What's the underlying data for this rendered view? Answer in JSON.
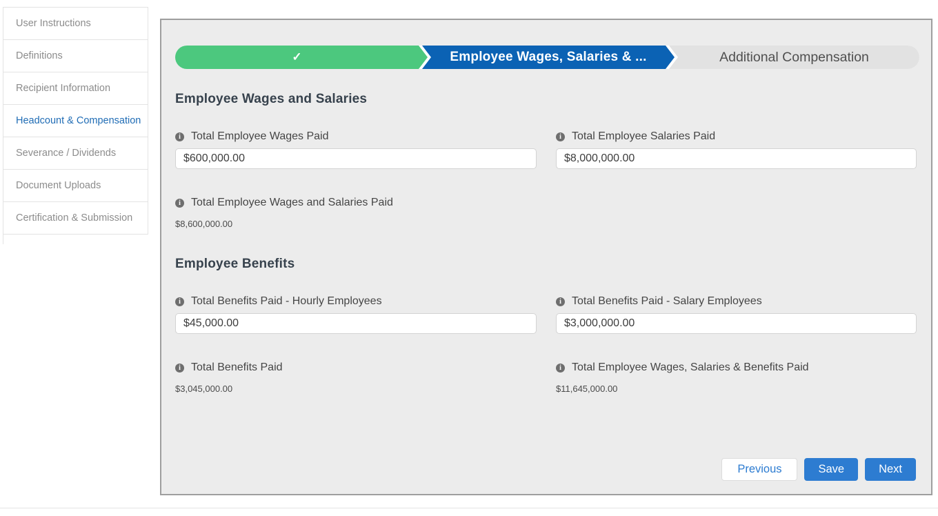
{
  "sidebar": {
    "items": [
      {
        "label": "User Instructions",
        "active": false
      },
      {
        "label": "Definitions",
        "active": false
      },
      {
        "label": "Recipient Information",
        "active": false
      },
      {
        "label": "Headcount & Compensation",
        "active": true
      },
      {
        "label": "Severance / Dividends",
        "active": false
      },
      {
        "label": "Document Uploads",
        "active": false
      },
      {
        "label": "Certification & Submission",
        "active": false
      }
    ]
  },
  "stepper": {
    "steps": [
      {
        "label": "",
        "state": "complete",
        "icon": "check"
      },
      {
        "label": "Employee Wages, Salaries & ...",
        "state": "active"
      },
      {
        "label": "Additional Compensation",
        "state": "upcoming"
      }
    ]
  },
  "icons": {
    "check": "✓",
    "info": "i"
  },
  "sections": [
    {
      "heading": "Employee Wages and Salaries",
      "fields": [
        {
          "label": "Total Employee Wages Paid",
          "value": "$600,000.00"
        },
        {
          "label": "Total Employee Salaries Paid",
          "value": "$8,000,000.00"
        }
      ],
      "totals": [
        {
          "label": "Total Employee Wages and Salaries Paid",
          "value": "$8,600,000.00"
        }
      ]
    },
    {
      "heading": "Employee Benefits",
      "fields": [
        {
          "label": "Total Benefits Paid - Hourly Employees",
          "value": "$45,000.00"
        },
        {
          "label": "Total Benefits Paid - Salary Employees",
          "value": "$3,000,000.00"
        }
      ],
      "totals": [
        {
          "label": "Total Benefits Paid",
          "value": "$3,045,000.00"
        },
        {
          "label": "Total Employee Wages, Salaries & Benefits Paid",
          "value": "$11,645,000.00"
        }
      ]
    }
  ],
  "buttons": {
    "previous": "Previous",
    "save": "Save",
    "next": "Next"
  },
  "colors": {
    "step_complete_green": "#4cc87e",
    "step_active_blue": "#0b62b4",
    "step_upcoming_gray": "#e2e2e2",
    "button_blue": "#2d7cd1",
    "sidebar_active_blue": "#1f6cb5",
    "panel_background": "#ececec",
    "panel_border": "#9e9e9e"
  }
}
